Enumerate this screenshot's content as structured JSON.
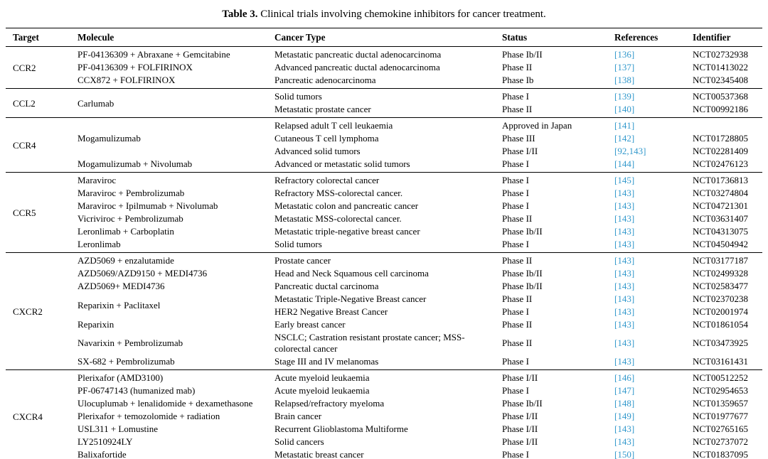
{
  "caption": {
    "label": "Table 3.",
    "text": " Clinical trials involving chemokine inhibitors for cancer treatment."
  },
  "colors": {
    "reference_link": "#3399cc",
    "text": "#000000",
    "background": "#ffffff"
  },
  "columns": [
    "Target",
    "Molecule",
    "Cancer Type",
    "Status",
    "References",
    "Identifier"
  ],
  "groups": [
    {
      "target": "CCR2",
      "blocks": [
        {
          "molecule": "PF-04136309 + Abraxane + Gemcitabine",
          "rows": [
            {
              "cancer": "Metastatic pancreatic ductal adenocarcinoma",
              "status": "Phase Ib/II",
              "refs": [
                "136"
              ],
              "id": "NCT02732938"
            }
          ]
        },
        {
          "molecule": "PF-04136309 + FOLFIRINOX",
          "rows": [
            {
              "cancer": "Advanced pancreatic ductal adenocarcinoma",
              "status": "Phase II",
              "refs": [
                "137"
              ],
              "id": "NCT01413022"
            }
          ]
        },
        {
          "molecule": "CCX872 + FOLFIRINOX",
          "rows": [
            {
              "cancer": "Pancreatic adenocarcinoma",
              "status": "Phase Ib",
              "refs": [
                "138"
              ],
              "id": "NCT02345408"
            }
          ]
        }
      ]
    },
    {
      "target": "CCL2",
      "blocks": [
        {
          "molecule": "Carlumab",
          "rows": [
            {
              "cancer": "Solid tumors",
              "status": "Phase I",
              "refs": [
                "139"
              ],
              "id": "NCT00537368"
            },
            {
              "cancer": "Metastatic prostate cancer",
              "status": "Phase II",
              "refs": [
                "140"
              ],
              "id": "NCT00992186"
            }
          ]
        }
      ]
    },
    {
      "target": "CCR4",
      "blocks": [
        {
          "molecule": "Mogamulizumab",
          "rows": [
            {
              "cancer": "Relapsed adult T cell leukaemia",
              "status": "Approved in Japan",
              "refs": [
                "141"
              ],
              "id": ""
            },
            {
              "cancer": "Cutaneous T cell lymphoma",
              "status": "Phase III",
              "refs": [
                "142"
              ],
              "id": "NCT01728805"
            },
            {
              "cancer": "Advanced solid tumors",
              "status": "Phase I/II",
              "refs": [
                "92",
                "143"
              ],
              "id": "NCT02281409"
            }
          ]
        },
        {
          "molecule": "Mogamulizumab + Nivolumab",
          "rows": [
            {
              "cancer": "Advanced or metastatic solid tumors",
              "status": "Phase I",
              "refs": [
                "144"
              ],
              "id": "NCT02476123"
            }
          ]
        }
      ]
    },
    {
      "target": "CCR5",
      "blocks": [
        {
          "molecule": "Maraviroc",
          "rows": [
            {
              "cancer": "Refractory colorectal cancer",
              "status": "Phase I",
              "refs": [
                "145"
              ],
              "id": "NCT01736813"
            }
          ]
        },
        {
          "molecule": "Maraviroc + Pembrolizumab",
          "rows": [
            {
              "cancer": "Refractory MSS-colorectal cancer.",
              "status": "Phase I",
              "refs": [
                "143"
              ],
              "id": "NCT03274804"
            }
          ]
        },
        {
          "molecule": "Maraviroc + Ipilmumab + Nivolumab",
          "rows": [
            {
              "cancer": "Metastatic colon and pancreatic cancer",
              "status": "Phase I",
              "refs": [
                "143"
              ],
              "id": "NCT04721301"
            }
          ]
        },
        {
          "molecule": "Vicriviroc + Pembrolizumab",
          "rows": [
            {
              "cancer": "Metastatic MSS-colorectal cancer.",
              "status": "Phase II",
              "refs": [
                "143"
              ],
              "id": "NCT03631407"
            }
          ]
        },
        {
          "molecule": "Leronlimab + Carboplatin",
          "rows": [
            {
              "cancer": "Metastatic triple-negative breast cancer",
              "status": "Phase Ib/II",
              "refs": [
                "143"
              ],
              "id": "NCT04313075"
            }
          ]
        },
        {
          "molecule": "Leronlimab",
          "rows": [
            {
              "cancer": "Solid tumors",
              "status": "Phase I",
              "refs": [
                "143"
              ],
              "id": "NCT04504942"
            }
          ]
        }
      ]
    },
    {
      "target": "CXCR2",
      "blocks": [
        {
          "molecule": "AZD5069 + enzalutamide",
          "rows": [
            {
              "cancer": "Prostate cancer",
              "status": "Phase II",
              "refs": [
                "143"
              ],
              "id": "NCT03177187"
            }
          ]
        },
        {
          "molecule": "AZD5069/AZD9150 + MEDI4736",
          "rows": [
            {
              "cancer": "Head and Neck Squamous cell carcinoma",
              "status": "Phase Ib/II",
              "refs": [
                "143"
              ],
              "id": "NCT02499328"
            }
          ]
        },
        {
          "molecule": "AZD5069+ MEDI4736",
          "rows": [
            {
              "cancer": "Pancreatic ductal carcinoma",
              "status": "Phase Ib/II",
              "refs": [
                "143"
              ],
              "id": "NCT02583477"
            }
          ]
        },
        {
          "molecule": "Reparixin + Paclitaxel",
          "rows": [
            {
              "cancer": "Metastatic Triple-Negative Breast cancer",
              "status": "Phase II",
              "refs": [
                "143"
              ],
              "id": "NCT02370238"
            },
            {
              "cancer": "HER2 Negative Breast Cancer",
              "status": "Phase I",
              "refs": [
                "143"
              ],
              "id": "NCT02001974"
            }
          ]
        },
        {
          "molecule": "Reparixin",
          "rows": [
            {
              "cancer": "Early breast cancer",
              "status": "Phase II",
              "refs": [
                "143"
              ],
              "id": "NCT01861054"
            }
          ]
        },
        {
          "molecule": "Navarixin + Pembrolizumab",
          "rows": [
            {
              "cancer": "NSCLC; Castration resistant prostate cancer; MSS- colorectal cancer",
              "status": "Phase II",
              "refs": [
                "143"
              ],
              "id": "NCT03473925"
            }
          ]
        },
        {
          "molecule": "SX-682 + Pembrolizumab",
          "rows": [
            {
              "cancer": "Stage III and IV melanomas",
              "status": "Phase I",
              "refs": [
                "143"
              ],
              "id": "NCT03161431"
            }
          ]
        }
      ]
    },
    {
      "target": "CXCR4",
      "blocks": [
        {
          "molecule": "Plerixafor (AMD3100)",
          "rows": [
            {
              "cancer": "Acute myeloid leukaemia",
              "status": "Phase I/II",
              "refs": [
                "146"
              ],
              "id": "NCT00512252"
            }
          ]
        },
        {
          "molecule": "PF-06747143 (humanized mab)",
          "rows": [
            {
              "cancer": "Acute myeloid leukaemia",
              "status": "Phase I",
              "refs": [
                "147"
              ],
              "id": "NCT02954653"
            }
          ]
        },
        {
          "molecule": "Ulocuplumab + lenalidomide + dexamethasone",
          "rows": [
            {
              "cancer": "Relapsed/refractory myeloma",
              "status": "Phase Ib/II",
              "refs": [
                "148"
              ],
              "id": "NCT01359657"
            }
          ]
        },
        {
          "molecule": "Plerixafor + temozolomide + radiation",
          "rows": [
            {
              "cancer": "Brain cancer",
              "status": "Phase I/II",
              "refs": [
                "149"
              ],
              "id": "NCT01977677"
            }
          ]
        },
        {
          "molecule": "USL311 + Lomustine",
          "rows": [
            {
              "cancer": "Recurrent Glioblastoma Multiforme",
              "status": "Phase I/II",
              "refs": [
                "143"
              ],
              "id": "NCT02765165"
            }
          ]
        },
        {
          "molecule": "LY2510924LY",
          "rows": [
            {
              "cancer": "Solid cancers",
              "status": "Phase I/II",
              "refs": [
                "143"
              ],
              "id": "NCT02737072"
            }
          ]
        },
        {
          "molecule": "Balixafortide",
          "rows": [
            {
              "cancer": "Metastatic breast cancer",
              "status": "Phase I",
              "refs": [
                "150"
              ],
              "id": "NCT01837095"
            }
          ]
        }
      ]
    }
  ]
}
